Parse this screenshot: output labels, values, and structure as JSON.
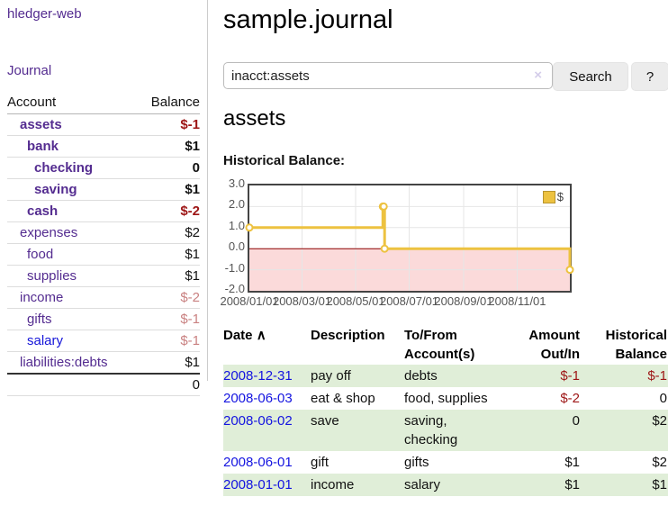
{
  "app": {
    "brand": "hledger-web",
    "nav_journal": "Journal"
  },
  "colors": {
    "link_purple": "#542c90",
    "link_blue": "#1414e0",
    "negative_dark_red": "#9d1515",
    "negative_light_red": "#c98181",
    "row_green": "#e0eed8",
    "chart_line_gold": "#edc240",
    "chart_negative_fill": "#fbdada",
    "chart_zero_line": "#8b0000",
    "chart_border": "#444444",
    "button_gray": "#ececec"
  },
  "sidebar": {
    "header": {
      "account": "Account",
      "balance": "Balance"
    },
    "accounts": [
      {
        "name": "assets",
        "indent": 1,
        "bold": true,
        "balance": "$-1",
        "balance_style": "neg"
      },
      {
        "name": "bank",
        "indent": 2,
        "bold": true,
        "balance": "$1",
        "balance_style": "pos"
      },
      {
        "name": "checking",
        "indent": 3,
        "bold": true,
        "balance": "0",
        "balance_style": "pos"
      },
      {
        "name": "saving",
        "indent": 3,
        "bold": true,
        "balance": "$1",
        "balance_style": "pos"
      },
      {
        "name": "cash",
        "indent": 2,
        "bold": true,
        "balance": "$-2",
        "balance_style": "neg"
      },
      {
        "name": "expenses",
        "indent": 1,
        "bold": false,
        "balance": "$2",
        "balance_style": "pos"
      },
      {
        "name": "food",
        "indent": 2,
        "bold": false,
        "balance": "$1",
        "balance_style": "pos"
      },
      {
        "name": "supplies",
        "indent": 2,
        "bold": false,
        "balance": "$1",
        "balance_style": "pos"
      },
      {
        "name": "income",
        "indent": 1,
        "bold": false,
        "balance": "$-2",
        "balance_style": "neglight"
      },
      {
        "name": "gifts",
        "indent": 2,
        "bold": false,
        "balance": "$-1",
        "balance_style": "neglight"
      },
      {
        "name": "salary",
        "indent": 2,
        "bold": false,
        "link_style": "blue",
        "balance": "$-1",
        "balance_style": "neglight"
      },
      {
        "name": "liabilities:debts",
        "indent": 1,
        "bold": false,
        "balance": "$1",
        "balance_style": "pos"
      }
    ],
    "total": "0"
  },
  "header": {
    "title": "sample.journal"
  },
  "search": {
    "query": "inacct:assets",
    "clear_icon": "×",
    "search_button": "Search",
    "help_button": "?"
  },
  "account_page": {
    "heading": "assets",
    "chart_label": "Historical Balance:"
  },
  "chart_data": {
    "type": "line",
    "title": "Historical Balance",
    "legend_position": "top-right",
    "grid": true,
    "ylim": [
      -2.0,
      3.0
    ],
    "y_ticks": [
      3.0,
      2.0,
      1.0,
      0.0,
      -1.0,
      -2.0
    ],
    "x_range_days": [
      0,
      365
    ],
    "x_tick_days": [
      0,
      60,
      121,
      182,
      244,
      305
    ],
    "x_tick_labels": [
      "2008/01/01",
      "2008/03/01",
      "2008/05/01",
      "2008/07/01",
      "2008/09/01",
      "2008/11/01"
    ],
    "series": [
      {
        "name": "$",
        "color": "#edc240",
        "step": true,
        "x_dates": [
          "2008-01-01",
          "2008-06-01",
          "2008-06-02",
          "2008-06-03",
          "2008-12-31"
        ],
        "points_day_value": [
          [
            0,
            1
          ],
          [
            152,
            2
          ],
          [
            153,
            2
          ],
          [
            154,
            0
          ],
          [
            365,
            -1
          ]
        ]
      }
    ],
    "negative_region_fill": "#fbdada",
    "zero_line_color": "#8b0000",
    "grid_color": "#e6e6e6"
  },
  "register": {
    "columns": [
      "Date",
      "Description",
      "To/From Account(s)",
      "Amount Out/In",
      "Historical Balance"
    ],
    "sort_indicator": "∧",
    "rows": [
      {
        "date": "2008-12-31",
        "description": "pay off",
        "accounts": "debts",
        "amount": "$-1",
        "amount_style": "neg",
        "balance": "$-1",
        "balance_style": "neg"
      },
      {
        "date": "2008-06-03",
        "description": "eat & shop",
        "accounts": "food, supplies",
        "amount": "$-2",
        "amount_style": "neg",
        "balance": "0",
        "balance_style": "pos"
      },
      {
        "date": "2008-06-02",
        "description": "save",
        "accounts": "saving, checking",
        "amount": "0",
        "amount_style": "pos",
        "balance": "$2",
        "balance_style": "pos"
      },
      {
        "date": "2008-06-01",
        "description": "gift",
        "accounts": "gifts",
        "amount": "$1",
        "amount_style": "pos",
        "balance": "$2",
        "balance_style": "pos"
      },
      {
        "date": "2008-01-01",
        "description": "income",
        "accounts": "salary",
        "amount": "$1",
        "amount_style": "pos",
        "balance": "$1",
        "balance_style": "pos"
      }
    ]
  }
}
